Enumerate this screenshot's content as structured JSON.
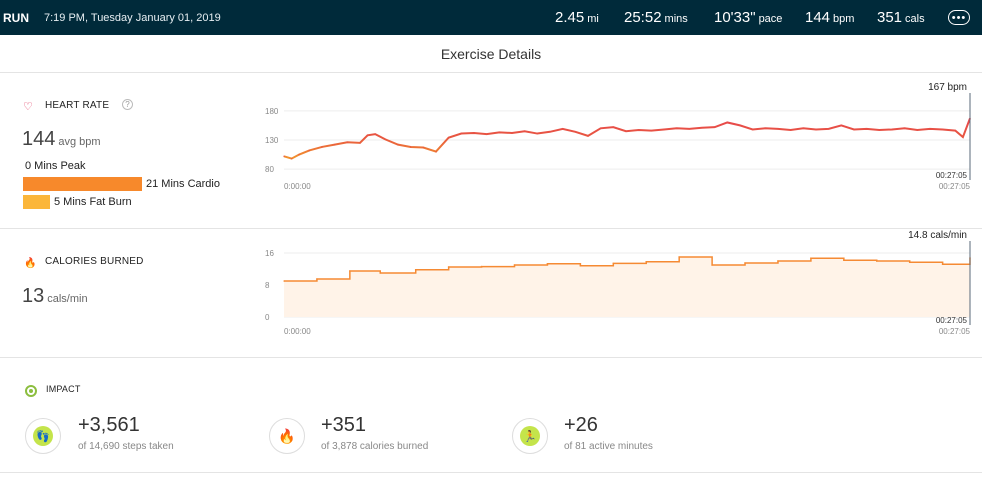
{
  "topbar": {
    "activity": "RUN",
    "datetime": "7:19 PM, Tuesday January 01, 2019",
    "distance": {
      "value": "2.45",
      "unit": "mi"
    },
    "duration": {
      "value": "25:52",
      "unit": "mins"
    },
    "pace": {
      "value": "10'33\"",
      "unit": "pace"
    },
    "heart": {
      "value": "144",
      "unit": "bpm"
    },
    "calories": {
      "value": "351",
      "unit": "cals"
    },
    "more_icon": "more-icon"
  },
  "page_title": "Exercise Details",
  "heart_rate": {
    "label": "HEART RATE",
    "value": "144",
    "unit": "avg bpm",
    "peak": "0 Mins Peak",
    "cardio": "21 Mins Cardio",
    "fatburn": "5 Mins Fat Burn",
    "colors": {
      "cardio": "#f7892b",
      "fatburn": "#fbb63a",
      "line_hi": "#e63a57",
      "line_lo": "#f39c2d"
    }
  },
  "calories": {
    "label": "CALORIES BURNED",
    "value": "13",
    "unit": "cals/min",
    "colors": {
      "line": "#f58a33",
      "fill": "#fff3e8"
    }
  },
  "impact": {
    "label": "IMPACT",
    "items": [
      {
        "icon": "footsteps-icon",
        "value": "+3,561",
        "sub": "of 14,690 steps taken"
      },
      {
        "icon": "flame-icon",
        "value": "+351",
        "sub": "of 3,878 calories burned"
      },
      {
        "icon": "running-icon",
        "value": "+26",
        "sub": "of 81 active minutes"
      }
    ]
  },
  "chart_data": [
    {
      "type": "line",
      "yticks": [
        80,
        130,
        180
      ],
      "ylim": [
        75,
        190
      ],
      "x_start_label": "0:00:00",
      "x_end_label": "00:27:05",
      "marker_value_label": "167 bpm",
      "marker_time_label": "00:27:05",
      "series": [
        {
          "x": [
            0,
            0.3,
            0.6,
            1,
            1.5,
            2,
            2.5,
            3,
            3.3,
            3.6,
            4,
            4.5,
            5,
            5.5,
            6,
            6.5,
            7,
            7.5,
            8,
            8.5,
            9,
            9.5,
            10,
            10.5,
            11,
            11.5,
            12,
            12.5,
            13,
            13.5,
            14,
            14.5,
            15,
            15.5,
            16,
            16.5,
            17,
            17.5,
            18,
            18.5,
            19,
            19.5,
            20,
            20.5,
            21,
            21.5,
            22,
            22.5,
            23,
            23.5,
            24,
            24.5,
            25,
            25.5,
            26,
            26.5,
            26.8,
            27.08
          ],
          "values": [
            102,
            98,
            105,
            112,
            118,
            122,
            126,
            125,
            138,
            140,
            131,
            122,
            118,
            117,
            110,
            134,
            141,
            142,
            140,
            143,
            142,
            145,
            141,
            144,
            149,
            144,
            137,
            150,
            152,
            145,
            147,
            146,
            148,
            150,
            149,
            151,
            152,
            160,
            155,
            148,
            150,
            149,
            147,
            150,
            148,
            149,
            155,
            148,
            149,
            147,
            148,
            150,
            147,
            149,
            148,
            146,
            135,
            167
          ]
        }
      ]
    },
    {
      "type": "area",
      "yticks": [
        0,
        8,
        16
      ],
      "ylim": [
        0,
        16
      ],
      "x_start_label": "0:00:00",
      "x_end_label": "00:27:05",
      "marker_value_label": "14.8 cals/min",
      "marker_time_label": "00:27:05",
      "series": [
        {
          "x": [
            0,
            1.3,
            2.6,
            3.8,
            5.2,
            6.5,
            7.8,
            9.1,
            10.4,
            11.7,
            13,
            14.3,
            15.6,
            16.9,
            18.2,
            19.5,
            20.8,
            22.1,
            23.4,
            24.7,
            26,
            27.08
          ],
          "values": [
            9,
            9.5,
            11.5,
            11,
            11.8,
            12.5,
            12.6,
            13,
            13.3,
            12.8,
            13.4,
            13.8,
            15,
            13,
            13.5,
            14,
            14.7,
            14.2,
            14,
            13.7,
            13.2,
            14.8
          ]
        }
      ]
    }
  ]
}
